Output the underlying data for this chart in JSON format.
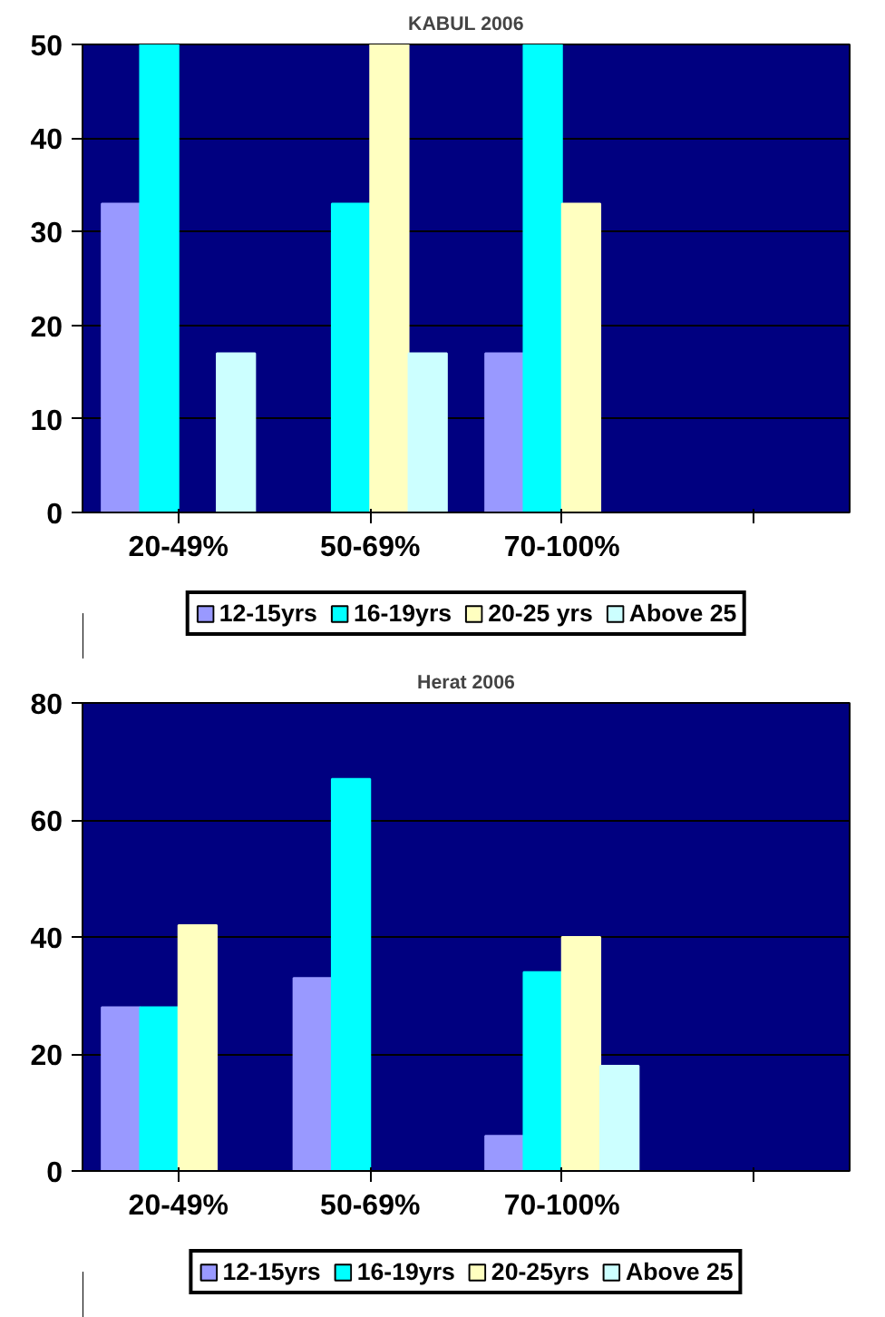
{
  "chart_data": [
    {
      "type": "bar",
      "title": "KABUL 2006",
      "categories": [
        "20-49%",
        "50-69%",
        "70-100%",
        null
      ],
      "series": [
        {
          "name": "12-15yrs",
          "color": "#9999ff",
          "values": [
            33,
            0,
            17,
            null
          ]
        },
        {
          "name": "16-19yrs",
          "color": "#00ffff",
          "values": [
            50,
            33,
            50,
            null
          ]
        },
        {
          "name": "20-25 yrs",
          "color": "#ffffc0",
          "values": [
            0,
            50,
            33,
            null
          ]
        },
        {
          "name": "Above 25",
          "color": "#ccffff",
          "values": [
            17,
            17,
            0,
            null
          ]
        }
      ],
      "ylim": [
        0,
        50
      ],
      "yticks": [
        0,
        10,
        20,
        30,
        40,
        50
      ],
      "grid": "y",
      "legend": "bottom"
    },
    {
      "type": "bar",
      "title": "Herat 2006",
      "categories": [
        "20-49%",
        "50-69%",
        "70-100%",
        null
      ],
      "series": [
        {
          "name": "12-15yrs",
          "color": "#9999ff",
          "values": [
            28,
            33,
            6,
            null
          ]
        },
        {
          "name": "16-19yrs",
          "color": "#00ffff",
          "values": [
            28,
            67,
            34,
            null
          ]
        },
        {
          "name": "20-25yrs",
          "color": "#ffffc0",
          "values": [
            42,
            0,
            40,
            null
          ]
        },
        {
          "name": "Above 25",
          "color": "#ccffff",
          "values": [
            0,
            0,
            18,
            null
          ]
        }
      ],
      "ylim": [
        0,
        80
      ],
      "yticks": [
        0,
        20,
        40,
        60,
        80
      ],
      "grid": "y",
      "legend": "bottom"
    }
  ]
}
